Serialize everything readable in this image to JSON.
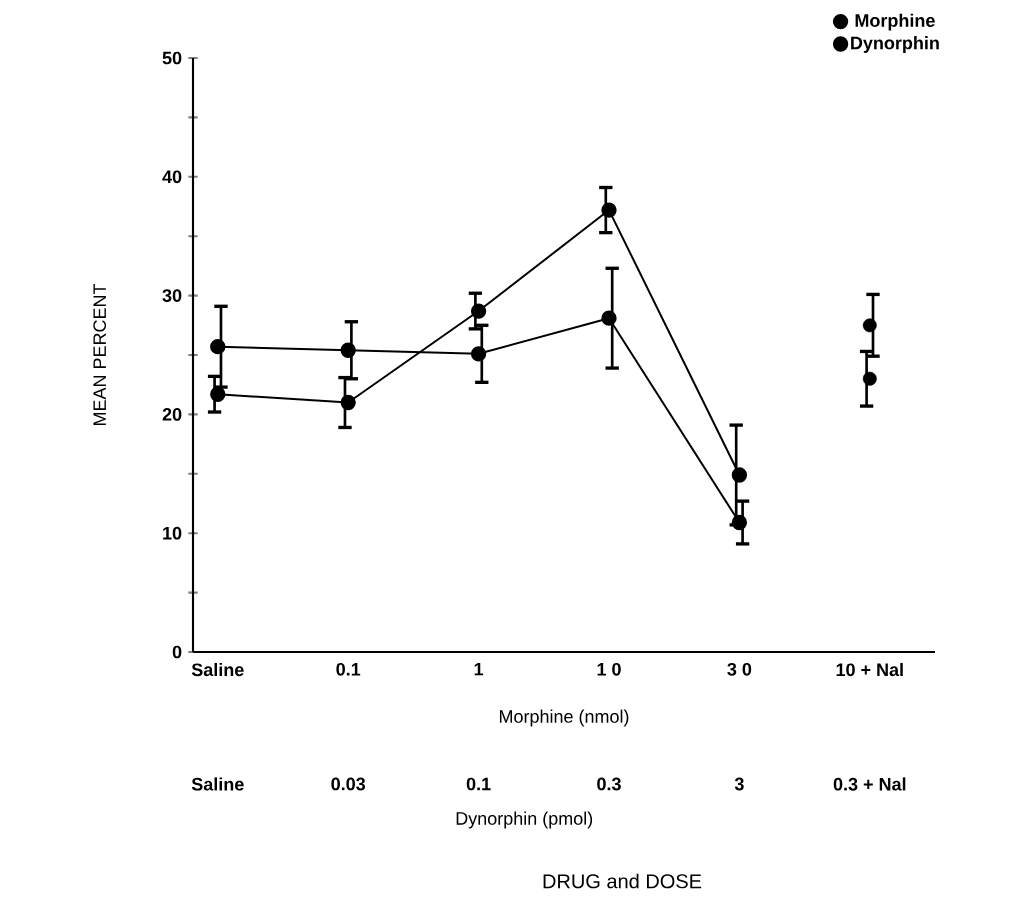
{
  "chart_data": {
    "type": "line",
    "xlabel": "Morphine (nmol)",
    "ylabel": "MEAN PERCENT",
    "categories": [
      "Saline",
      "0.1",
      "1",
      "1 0",
      "3 0",
      "10 + Nal"
    ],
    "series": [
      {
        "name": "Morphine",
        "color": "#000000",
        "values": [
          21.7,
          21.0,
          28.7,
          37.2,
          14.9,
          null
        ],
        "errors": [
          1.5,
          2.1,
          1.5,
          1.9,
          4.2,
          null
        ]
      },
      {
        "name": "Dynorphin",
        "color": "#000000",
        "values": [
          25.7,
          25.4,
          25.1,
          28.1,
          10.9,
          null
        ],
        "errors": [
          3.4,
          2.4,
          2.4,
          4.2,
          1.8,
          null
        ]
      },
      {
        "type": "scatter",
        "color": "#000000",
        "x": [
          "10 + Nal"
        ],
        "values": [
          23.0
        ],
        "errors": [
          2.3
        ]
      },
      {
        "type": "scatter",
        "color": "#000000",
        "x": [
          "10 + Nal"
        ],
        "values": [
          27.5
        ],
        "errors": [
          2.6
        ]
      }
    ],
    "ylim": [
      0,
      50
    ],
    "yticks": [
      0,
      {
        "value": 5,
        "label": null
      },
      10,
      {
        "value": 15,
        "label": null
      },
      20,
      {
        "value": 25,
        "label": null
      },
      30,
      {
        "value": 35,
        "label": null
      },
      40,
      {
        "value": 45,
        "label": null
      },
      50
    ],
    "annotations": [
      "Saline",
      "0.03",
      "0.1",
      "0.3",
      "3",
      "0.3 + Nal",
      "Dynorphin (pmol)",
      "DRUG and DOSE"
    ],
    "marker": "circle",
    "line_style": "solid",
    "legend": "top right",
    "grid": false
  }
}
